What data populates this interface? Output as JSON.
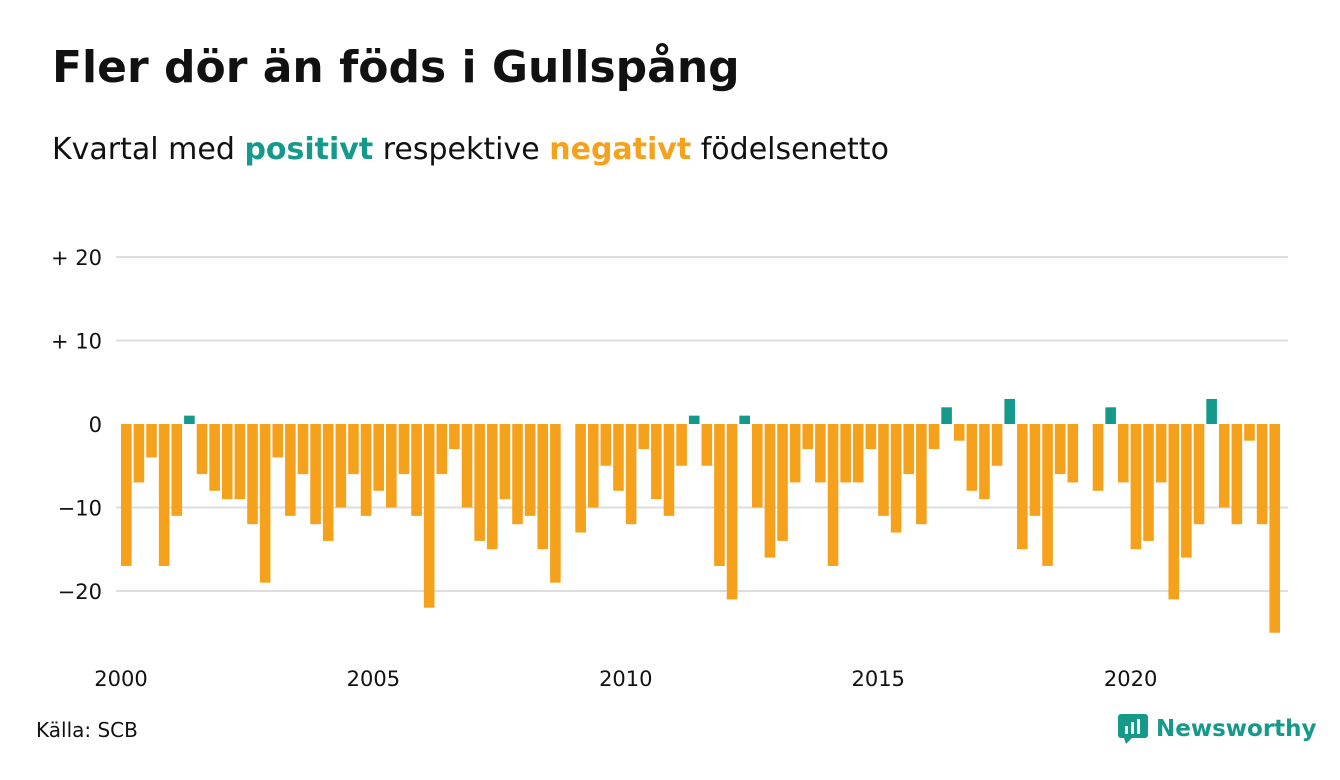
{
  "header": {
    "title": "Fler dör än föds i Gullspång",
    "subtitle_prefix": "Kvartal med",
    "subtitle_pos": "positivt",
    "subtitle_mid": "respektive",
    "subtitle_neg": "negativt",
    "subtitle_suffix": "födelsenetto"
  },
  "footer": {
    "source": "Källa: SCB",
    "brand": "Newsworthy",
    "brand_icon": "newsworthy-logo-icon"
  },
  "colors": {
    "positive": "#14998a",
    "negative": "#f6a11b",
    "grid": "#dddddd",
    "text": "#111111"
  },
  "chart_data": {
    "type": "bar",
    "title": "Fler dör än föds i Gullspång",
    "subtitle": "Kvartal med positivt respektive negativt födelsenetto",
    "x_start": "2000 Q1",
    "frequency": "quarterly",
    "xticks": [
      {
        "label": "2000",
        "year": 2000
      },
      {
        "label": "2005",
        "year": 2005
      },
      {
        "label": "2010",
        "year": 2010
      },
      {
        "label": "2015",
        "year": 2015
      },
      {
        "label": "2020",
        "year": 2020
      }
    ],
    "yticks": [
      {
        "value": 20,
        "label": "+ 20"
      },
      {
        "value": 10,
        "label": "+ 10"
      },
      {
        "value": 0,
        "label": "0"
      },
      {
        "value": -10,
        "label": "−10"
      },
      {
        "value": -20,
        "label": "−20"
      }
    ],
    "ylim": [
      -26,
      21
    ],
    "grid": true,
    "values": [
      -17,
      -7,
      -4,
      -17,
      -11,
      1,
      -6,
      -8,
      -9,
      -9,
      -12,
      -19,
      -4,
      -11,
      -6,
      -12,
      -14,
      -10,
      -6,
      -11,
      -8,
      -10,
      -6,
      -11,
      -22,
      -6,
      -3,
      -10,
      -14,
      -15,
      -9,
      -12,
      -11,
      -15,
      -19,
      0,
      -13,
      -10,
      -5,
      -8,
      -12,
      -3,
      -9,
      -11,
      -5,
      1,
      -5,
      -17,
      -21,
      1,
      -10,
      -16,
      -14,
      -7,
      -3,
      -7,
      -17,
      -7,
      -7,
      -3,
      -11,
      -13,
      -6,
      -12,
      -3,
      2,
      -2,
      -8,
      -9,
      -5,
      3,
      -15,
      -11,
      -17,
      -6,
      -7,
      0,
      -8,
      2,
      -7,
      -15,
      -14,
      -7,
      -21,
      -16,
      -12,
      3,
      -10,
      -12,
      -2,
      -12,
      -25
    ]
  }
}
